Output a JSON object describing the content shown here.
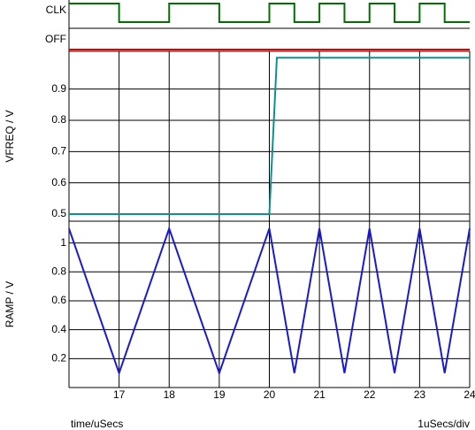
{
  "chart_data": [
    {
      "type": "line",
      "xlim": [
        16,
        24
      ],
      "ylim": [
        0,
        1
      ],
      "x": [
        16,
        17,
        17,
        18,
        18,
        19,
        19,
        20,
        20,
        20.5,
        20.5,
        21,
        21,
        21.5,
        21.5,
        22,
        22,
        22.5,
        22.5,
        23,
        23,
        23.5,
        23.5,
        24
      ],
      "series": [
        {
          "name": "CLK",
          "color": "#007000",
          "values": [
            1,
            1,
            0,
            0,
            1,
            1,
            0,
            0,
            1,
            1,
            0,
            0,
            1,
            1,
            0,
            0,
            1,
            1,
            0,
            0,
            1,
            1,
            0,
            0
          ]
        }
      ]
    },
    {
      "type": "line",
      "xlim": [
        16,
        24
      ],
      "ylim": [
        0,
        1
      ],
      "x": [
        16,
        24
      ],
      "series": [
        {
          "name": "OFF",
          "color": "#e00000",
          "values": [
            0,
            0
          ]
        }
      ]
    },
    {
      "type": "line",
      "xlim": [
        16,
        24
      ],
      "ylim": [
        0.5,
        1.015
      ],
      "ylabel": "VFREQ / V",
      "yticks": [
        0.5,
        0.6,
        0.7,
        0.8,
        0.9
      ],
      "grid": true,
      "x": [
        16,
        20,
        20.15,
        24
      ],
      "series": [
        {
          "name": "VFREQ",
          "color": "#108f8f",
          "values": [
            0.5,
            0.5,
            1.0,
            1.0
          ]
        }
      ]
    },
    {
      "type": "line",
      "xlim": [
        16,
        24
      ],
      "ylim": [
        0,
        1.12
      ],
      "ylabel": "RAMP / V",
      "yticks": [
        0.2,
        0.4,
        0.6,
        0.8,
        1
      ],
      "xticks": [
        17,
        18,
        19,
        20,
        21,
        22,
        23,
        24
      ],
      "grid": true,
      "xlabel": "time/uSecs",
      "scale_note": "1uSecs/div",
      "x": [
        16,
        17,
        18,
        19,
        20,
        20.5,
        21,
        21.5,
        22,
        22.5,
        23,
        23.5,
        24
      ],
      "series": [
        {
          "name": "RAMP",
          "color": "#1a1acc",
          "values": [
            1.1,
            0.1,
            1.1,
            0.1,
            1.1,
            0.1,
            1.1,
            0.1,
            1.1,
            0.1,
            1.1,
            0.1,
            1.1
          ]
        }
      ]
    }
  ]
}
